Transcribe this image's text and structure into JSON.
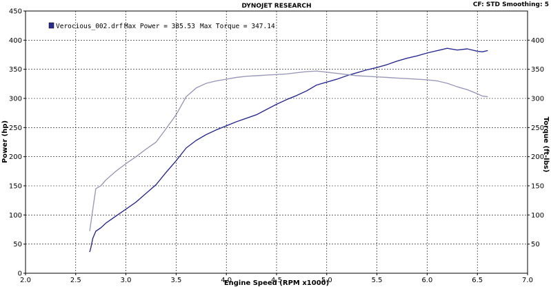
{
  "header": {
    "title": "DYNOJET RESEARCH",
    "settings": "CF: STD  Smoothing: 5"
  },
  "legend": {
    "run_name": "Verocious_002.drf",
    "max_power_label": "Max Power = 385.53",
    "max_torque_label": "Max Torque = 347.14"
  },
  "chart_data": {
    "type": "line",
    "title": "DYNOJET RESEARCH",
    "xlabel": "Engine Speed (RPM x1000)",
    "ylabel": "Power (hp)",
    "y2label": "Torque (ft-lbs)",
    "xlim": [
      2.0,
      7.0
    ],
    "ylim": [
      0,
      450
    ],
    "y2lim": [
      0,
      450
    ],
    "x_ticks": [
      "2.0",
      "2.5",
      "3.0",
      "3.5",
      "4.0",
      "4.5",
      "5.0",
      "5.5",
      "6.0",
      "6.5",
      "7.0"
    ],
    "y_ticks": [
      "0",
      "50",
      "100",
      "150",
      "200",
      "250",
      "300",
      "350",
      "400",
      "450"
    ],
    "y2_ticks": [
      "50",
      "100",
      "150",
      "200",
      "250",
      "300",
      "350",
      "400"
    ],
    "grid": true,
    "colors": {
      "power": "#2b2b8f",
      "torque": "#9a9ab8",
      "legend_swatch": "#2b2b8f"
    },
    "series": [
      {
        "name": "Power",
        "x": [
          2.64,
          2.65,
          2.67,
          2.7,
          2.75,
          2.8,
          2.9,
          3.0,
          3.1,
          3.2,
          3.3,
          3.4,
          3.5,
          3.6,
          3.7,
          3.8,
          3.9,
          4.0,
          4.1,
          4.2,
          4.3,
          4.4,
          4.5,
          4.6,
          4.7,
          4.8,
          4.9,
          5.0,
          5.1,
          5.2,
          5.3,
          5.4,
          5.5,
          5.6,
          5.7,
          5.8,
          5.9,
          6.0,
          6.1,
          6.2,
          6.3,
          6.4,
          6.5,
          6.55,
          6.6
        ],
        "values": [
          37,
          43,
          60,
          72,
          78,
          86,
          98,
          110,
          122,
          137,
          152,
          173,
          193,
          215,
          228,
          238,
          246,
          253,
          260,
          266,
          272,
          281,
          290,
          298,
          305,
          313,
          323,
          328,
          333,
          339,
          344,
          349,
          353,
          358,
          364,
          369,
          373,
          378,
          382,
          386,
          383,
          385,
          381,
          380,
          382
        ]
      },
      {
        "name": "Torque",
        "x": [
          2.64,
          2.65,
          2.67,
          2.7,
          2.75,
          2.8,
          2.9,
          3.0,
          3.1,
          3.2,
          3.3,
          3.4,
          3.5,
          3.6,
          3.7,
          3.8,
          3.9,
          4.0,
          4.1,
          4.2,
          4.3,
          4.4,
          4.5,
          4.6,
          4.7,
          4.8,
          4.9,
          5.0,
          5.1,
          5.2,
          5.3,
          5.4,
          5.5,
          5.6,
          5.7,
          5.8,
          5.9,
          6.0,
          6.1,
          6.2,
          6.3,
          6.4,
          6.5,
          6.55,
          6.6
        ],
        "values": [
          73,
          85,
          110,
          145,
          150,
          160,
          175,
          188,
          200,
          213,
          225,
          248,
          272,
          303,
          318,
          326,
          330,
          333,
          336,
          338,
          339,
          340,
          341,
          342,
          344,
          346,
          347,
          345,
          343,
          341,
          339,
          338,
          337,
          336,
          335,
          334,
          333,
          332,
          330,
          326,
          320,
          315,
          308,
          304,
          303
        ]
      }
    ]
  }
}
